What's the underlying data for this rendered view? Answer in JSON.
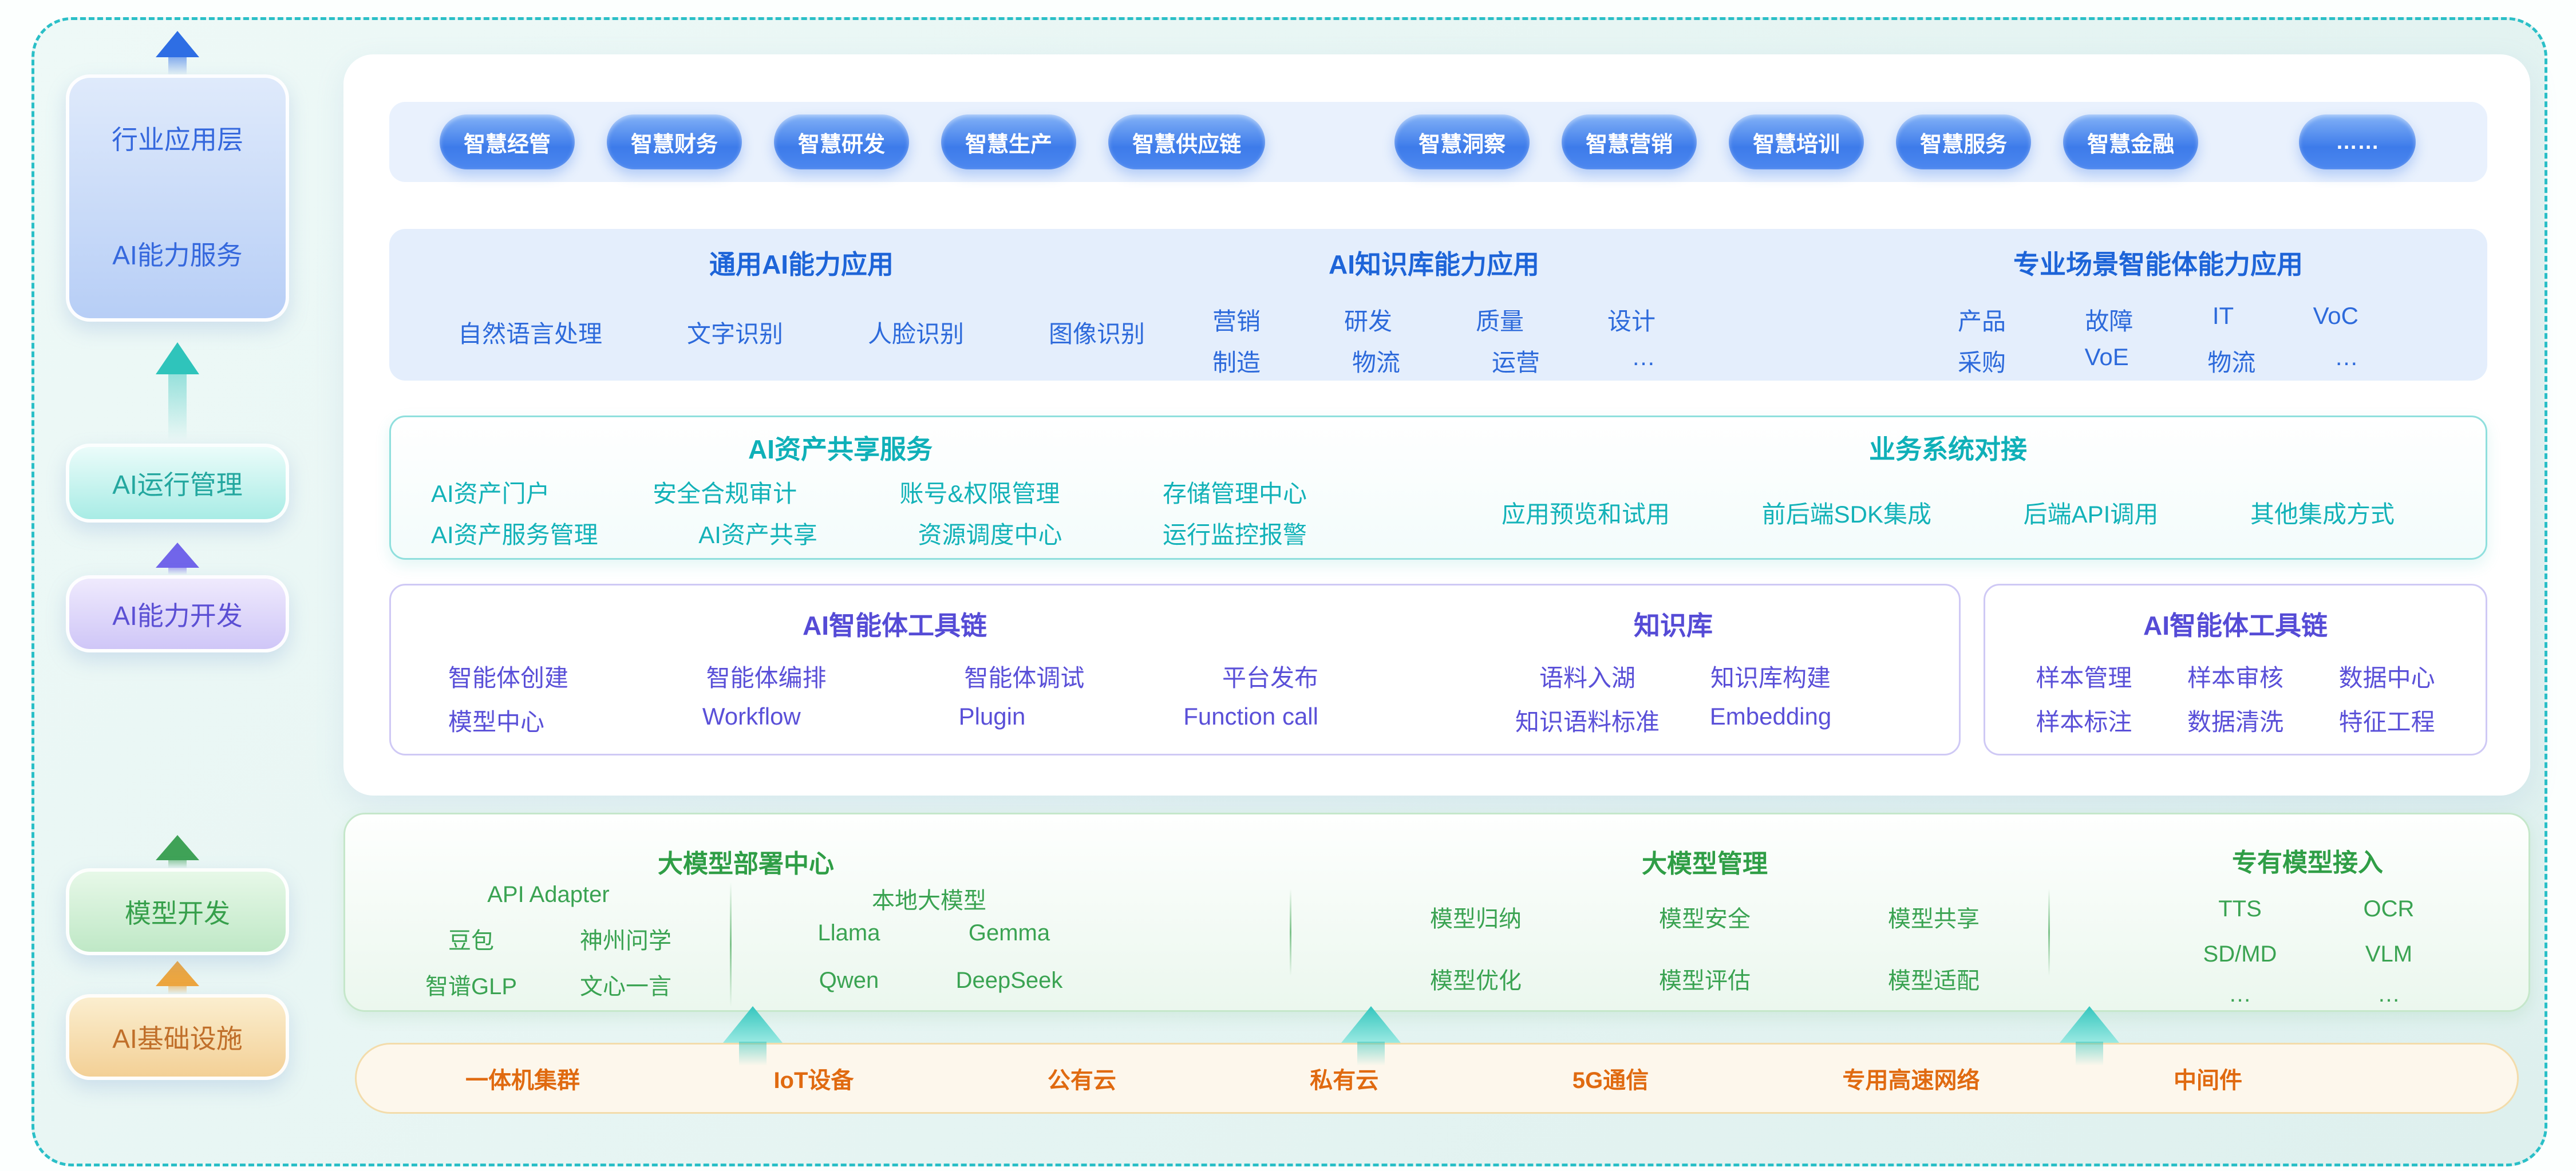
{
  "colors": {
    "dashed_border": "#2abfc7",
    "accent_blue": "#3d7bea",
    "accent_teal": "#13b2b8",
    "accent_indigo": "#5a50d8",
    "accent_green": "#2f9e46",
    "accent_orange": "#e06a10"
  },
  "sidebar": {
    "app_top": "行业应用层",
    "app_bottom": "AI能力服务",
    "ops": "AI运行管理",
    "dev": "AI能力开发",
    "model_dev": "模型开发",
    "infra": "AI基础设施"
  },
  "pills": [
    "智慧经管",
    "智慧财务",
    "智慧研发",
    "智慧生产",
    "智慧供应链",
    "智慧洞察",
    "智慧营销",
    "智慧培训",
    "智慧服务",
    "智慧金融",
    "……"
  ],
  "capability": {
    "general": {
      "title": "通用AI能力应用",
      "items": [
        "自然语言处理",
        "文字识别",
        "人脸识别",
        "图像识别"
      ]
    },
    "knowledge": {
      "title": "AI知识库能力应用",
      "row1": [
        "营销",
        "研发",
        "质量",
        "设计"
      ],
      "row2": [
        "制造",
        "物流",
        "运营",
        "…"
      ]
    },
    "scenario": {
      "title": "专业场景智能体能力应用",
      "row1": [
        "产品",
        "故障",
        "IT",
        "VoC"
      ],
      "row2": [
        "采购",
        "VoE",
        "物流",
        "…"
      ]
    }
  },
  "assets": {
    "share": {
      "title": "AI资产共享服务",
      "row1": [
        "AI资产门户",
        "安全合规审计",
        "账号&权限管理",
        "存储管理中心"
      ],
      "row2": [
        "AI资产服务管理",
        "AI资产共享",
        "资源调度中心",
        "运行监控报警"
      ]
    },
    "integration": {
      "title": "业务系统对接",
      "items": [
        "应用预览和试用",
        "前后端SDK集成",
        "后端API调用",
        "其他集成方式"
      ]
    }
  },
  "toolchain": {
    "agent": {
      "title": "AI智能体工具链",
      "row1": [
        "智能体创建",
        "智能体编排",
        "智能体调试",
        "平台发布"
      ],
      "row2": [
        "模型中心",
        "Workflow",
        "Plugin",
        "Function call"
      ]
    },
    "kb": {
      "title": "知识库",
      "row1": [
        "语料入湖",
        "知识库构建"
      ],
      "row2": [
        "知识语料标准",
        "Embedding"
      ]
    },
    "data": {
      "title": "AI智能体工具链",
      "row1": [
        "样本管理",
        "样本审核",
        "数据中心"
      ],
      "row2": [
        "样本标注",
        "数据清洗",
        "特征工程"
      ]
    }
  },
  "models": {
    "deploy": {
      "title": "大模型部署中心",
      "api_header": "API Adapter",
      "api_row1": [
        "豆包",
        "神州问学"
      ],
      "api_row2": [
        "智谱GLP",
        "文心一言"
      ],
      "local_header": "本地大模型",
      "local_row1": [
        "Llama",
        "Gemma"
      ],
      "local_row2": [
        "Qwen",
        "DeepSeek"
      ]
    },
    "manage": {
      "title": "大模型管理",
      "row1": [
        "模型归纳",
        "模型安全",
        "模型共享"
      ],
      "row2": [
        "模型优化",
        "模型评估",
        "模型适配"
      ]
    },
    "custom": {
      "title": "专有模型接入",
      "row1": [
        "TTS",
        "OCR"
      ],
      "row2": [
        "SD/MD",
        "VLM"
      ],
      "row3": [
        "…",
        "…"
      ]
    }
  },
  "infra_bar": {
    "items": [
      "一体机集群",
      "IoT设备",
      "公有云",
      "私有云",
      "5G通信",
      "专用高速网络",
      "中间件"
    ]
  }
}
